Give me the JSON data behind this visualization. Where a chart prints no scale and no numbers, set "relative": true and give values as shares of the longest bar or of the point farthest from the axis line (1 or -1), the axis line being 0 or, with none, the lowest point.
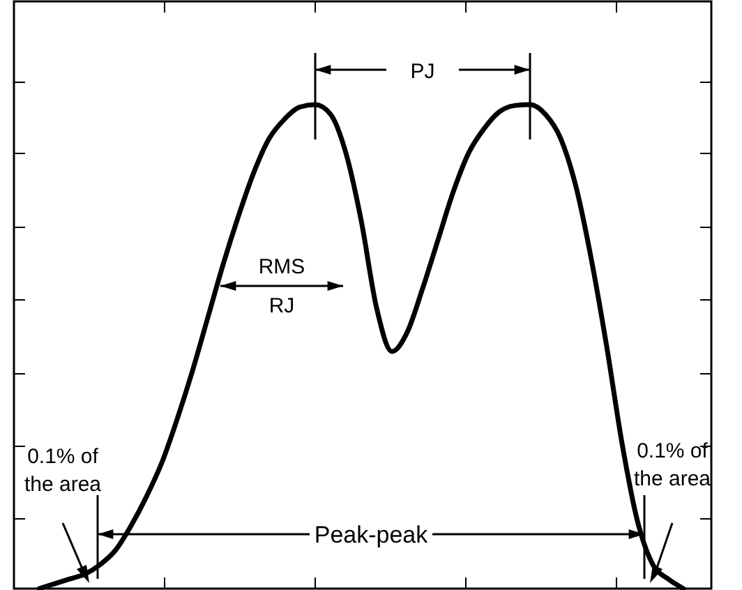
{
  "chart_data": {
    "type": "line",
    "relative": true,
    "color": "#000000",
    "categories": [
      null,
      null,
      null,
      null,
      null,
      null,
      null,
      null,
      null,
      null,
      null,
      null,
      null,
      null,
      null,
      null,
      null,
      null,
      null,
      null,
      null,
      null,
      null,
      null,
      null,
      null,
      null,
      null,
      null,
      null,
      null,
      null,
      null,
      null,
      null,
      null,
      null,
      null,
      null,
      null,
      null,
      null,
      null
    ],
    "values": [
      0,
      0.01,
      0.02,
      0.03,
      0.05,
      0.08,
      0.13,
      0.19,
      0.26,
      0.35,
      0.45,
      0.56,
      0.67,
      0.77,
      0.86,
      0.93,
      0.97,
      0.995,
      1,
      0.98,
      0.9,
      0.76,
      0.58,
      0.49,
      0.53,
      0.62,
      0.72,
      0.82,
      0.9,
      0.95,
      0.985,
      0.998,
      1,
      0.98,
      0.93,
      0.83,
      0.68,
      0.5,
      0.3,
      0.14,
      0.05,
      0.02,
      0
    ],
    "annotations": [
      "PJ",
      "RMS",
      "RJ",
      "0.1% of the area",
      "0.1% of the area",
      "Peak-peak"
    ]
  }
}
